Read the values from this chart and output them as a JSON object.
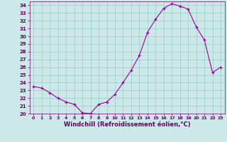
{
  "x": [
    0,
    1,
    2,
    3,
    4,
    5,
    6,
    7,
    8,
    9,
    10,
    11,
    12,
    13,
    14,
    15,
    16,
    17,
    18,
    19,
    20,
    21,
    22,
    23
  ],
  "y": [
    23.5,
    23.3,
    22.7,
    22.0,
    21.5,
    21.2,
    20.1,
    20.0,
    21.2,
    21.5,
    22.5,
    24.0,
    25.6,
    27.5,
    30.5,
    32.2,
    33.6,
    34.2,
    33.9,
    33.5,
    31.2,
    29.5,
    25.3,
    26.0
  ],
  "ylim": [
    20,
    34.5
  ],
  "xlim": [
    -0.5,
    23.5
  ],
  "yticks": [
    20,
    21,
    22,
    23,
    24,
    25,
    26,
    27,
    28,
    29,
    30,
    31,
    32,
    33,
    34
  ],
  "xticks": [
    0,
    1,
    2,
    3,
    4,
    5,
    6,
    7,
    8,
    9,
    10,
    11,
    12,
    13,
    14,
    15,
    16,
    17,
    18,
    19,
    20,
    21,
    22,
    23
  ],
  "line_color": "#990099",
  "marker": "+",
  "bg_color": "#cce8e8",
  "grid_color": "#99cccc",
  "xlabel": "Windchill (Refroidissement éolien,°C)",
  "xlabel_color": "#660066",
  "tick_color": "#660066",
  "ytick_fontsize": 5.0,
  "xtick_fontsize": 4.5,
  "label_fontsize": 6.0
}
